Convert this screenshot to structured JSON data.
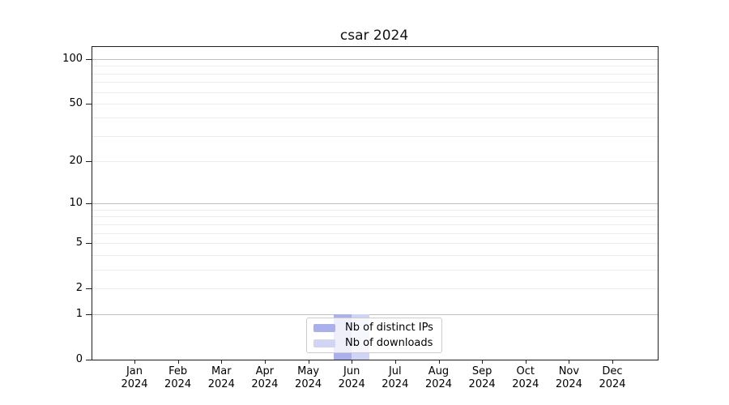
{
  "chart_data": {
    "type": "bar",
    "title": "csar 2024",
    "xlabel": "",
    "ylabel": "",
    "categories_months": [
      "Jan",
      "Feb",
      "Mar",
      "Apr",
      "May",
      "Jun",
      "Jul",
      "Aug",
      "Sep",
      "Oct",
      "Nov",
      "Dec"
    ],
    "categories_year": "2024",
    "series": [
      {
        "name": "Nb of distinct IPs",
        "color": "#a9b0ec",
        "values": [
          0,
          0,
          0,
          0,
          0,
          1,
          0,
          0,
          0,
          0,
          0,
          0
        ]
      },
      {
        "name": "Nb of downloads",
        "color": "#d0d5f6",
        "values": [
          0,
          0,
          0,
          0,
          0,
          1,
          0,
          0,
          0,
          0,
          0,
          0
        ]
      }
    ],
    "y_scale": "log1p",
    "ylim": [
      0,
      120.6
    ],
    "y_ticks_labeled": [
      0,
      1,
      2,
      5,
      10,
      20,
      50,
      100
    ],
    "y_major_grid": [
      1,
      10,
      100
    ],
    "y_minor_grid": [
      2,
      3,
      4,
      5,
      6,
      7,
      8,
      9,
      20,
      30,
      40,
      50,
      60,
      70,
      80,
      90
    ],
    "grid": "horizontal",
    "legend_position": "lower center"
  },
  "colors": {
    "major_grid": "#bfbfbf",
    "minor_grid": "#ececec",
    "spine": "#1f1f1f",
    "background": "#ffffff"
  }
}
